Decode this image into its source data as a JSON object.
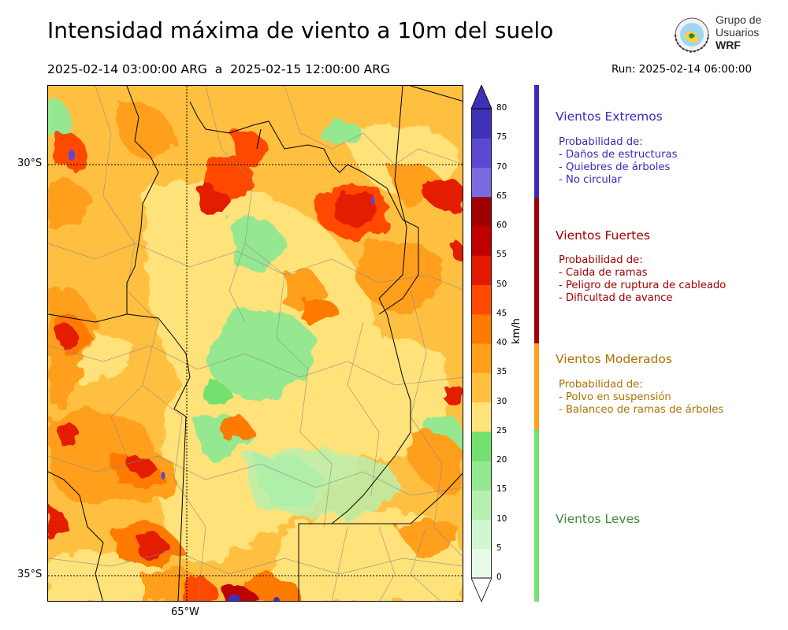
{
  "title": "Intensidad máxima de viento a 10m del suelo",
  "period": "2025-02-14 03:00:00 ARG  a  2025-02-15 12:00:00 ARG",
  "run": "Run: 2025-02-14 06:00:00",
  "logo": {
    "line1": "Grupo de",
    "line2": "Usuarios",
    "line3": "WRF"
  },
  "map": {
    "lat_labels": [
      "30°S",
      "35°S"
    ],
    "lon_label": "65°W"
  },
  "colorbar": {
    "unit": "km/h",
    "ticks": [
      "0",
      "5",
      "10",
      "15",
      "20",
      "25",
      "30",
      "35",
      "40",
      "45",
      "50",
      "55",
      "60",
      "65",
      "70",
      "75",
      "80"
    ],
    "colors": [
      "#e8fbe8",
      "#d0f7d0",
      "#b6f0b0",
      "#96e890",
      "#74e070",
      "#ffe27a",
      "#ffc042",
      "#ff9f1a",
      "#ff7a00",
      "#ff4a00",
      "#e41a00",
      "#c00000",
      "#a00000",
      "#7a6ae0",
      "#5a48d0",
      "#4030b8"
    ]
  },
  "legend": [
    {
      "title": "Vientos Extremos",
      "color": "#3a2ab8",
      "lines": [
        "Probabilidad de:",
        "- Daños de estructuras",
        "- Quiebres de árboles",
        "- No circular"
      ]
    },
    {
      "title": "Vientos Fuertes",
      "color": "#a00000",
      "lines": [
        "Probabilidad de:",
        "- Caida de ramas",
        "- Peligro de ruptura de cableado",
        "- Dificultad de avance"
      ]
    },
    {
      "title": "Vientos Moderados",
      "color": "#b07000",
      "lines": [
        "Probabilidad de:",
        "- Polvo en suspensión",
        "- Balanceo de ramas de árboles"
      ]
    },
    {
      "title": "Vientos Leves",
      "color": "#3a8a3a",
      "lines": []
    }
  ]
}
